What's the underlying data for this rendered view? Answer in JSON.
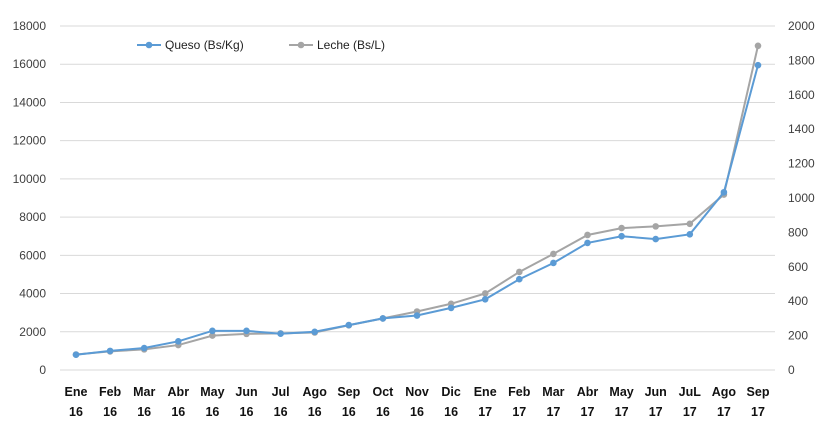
{
  "chart_data": {
    "type": "line",
    "title": "",
    "categories": [
      [
        "Ene",
        "16"
      ],
      [
        "Feb",
        "16"
      ],
      [
        "Mar",
        "16"
      ],
      [
        "Abr",
        "16"
      ],
      [
        "May",
        "16"
      ],
      [
        "Jun",
        "16"
      ],
      [
        "Jul",
        "16"
      ],
      [
        "Ago",
        "16"
      ],
      [
        "Sep",
        "16"
      ],
      [
        "Oct",
        "16"
      ],
      [
        "Nov",
        "16"
      ],
      [
        "Dic",
        "16"
      ],
      [
        "Ene",
        "17"
      ],
      [
        "Feb",
        "17"
      ],
      [
        "Mar",
        "17"
      ],
      [
        "Abr",
        "17"
      ],
      [
        "May",
        "17"
      ],
      [
        "Jun",
        "17"
      ],
      [
        "JuL",
        "17"
      ],
      [
        "Ago",
        "17"
      ],
      [
        "Sep",
        "17"
      ]
    ],
    "y_left": {
      "min": 0,
      "max": 18000,
      "step": 2000,
      "ticks": [
        "0",
        "2000",
        "4000",
        "6000",
        "8000",
        "10000",
        "12000",
        "14000",
        "16000",
        "18000"
      ]
    },
    "y_right": {
      "min": 0,
      "max": 2000,
      "step": 200,
      "ticks": [
        "0",
        "200",
        "400",
        "600",
        "800",
        "1000",
        "1200",
        "1400",
        "1600",
        "1800",
        "2000"
      ]
    },
    "grid": true,
    "legend_position": "top-left",
    "series": [
      {
        "name": "Queso (Bs/Kg)",
        "axis": "left",
        "color": "#5b9bd5",
        "values": [
          800,
          1000,
          1150,
          1500,
          2050,
          2050,
          1900,
          2000,
          2350,
          2700,
          2850,
          3250,
          3700,
          4750,
          5600,
          6650,
          7000,
          6850,
          7100,
          9300,
          15950
        ]
      },
      {
        "name": "Leche (Bs/L)",
        "axis": "right",
        "color": "#a5a5a5",
        "values": [
          90,
          108,
          120,
          145,
          200,
          210,
          213,
          218,
          260,
          300,
          340,
          385,
          445,
          570,
          675,
          785,
          825,
          835,
          850,
          1020,
          1885
        ]
      }
    ]
  }
}
